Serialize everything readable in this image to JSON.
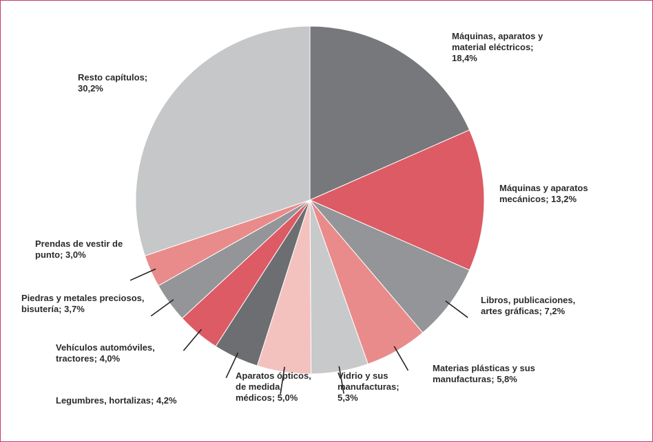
{
  "chart_data": {
    "type": "pie",
    "categories": [
      "Máquinas, aparatos y material eléctricos;",
      "Máquinas y aparatos mecánicos;",
      "Libros, publicaciones, artes gráficas;",
      "Materias plásticas y sus manufacturas;",
      "Vidrio y sus manufacturas;",
      "Aparatos ópticos, de medida, médicos;",
      "Legumbres, hortalizas;",
      "Vehículos automóviles, tractores;",
      "Piedras y metales preciosos, bisutería;",
      "Prendas de vestir de punto;",
      "Resto capítulos;"
    ],
    "values": [
      18.4,
      13.2,
      7.2,
      5.8,
      5.3,
      5.0,
      4.2,
      4.0,
      3.7,
      3.0,
      30.2
    ],
    "value_labels": [
      "18,4%",
      "13,2%",
      "7,2%",
      "5,8%",
      "5,3%",
      "5,0%",
      "4,2%",
      "4,0%",
      "3,7%",
      "3,0%",
      "30,2%"
    ],
    "colors": [
      "#77787b",
      "#dc5b65",
      "#939598",
      "#e98b8a",
      "#c8c9cb",
      "#f3c2bf",
      "#6d6e71",
      "#dc5b65",
      "#939598",
      "#e98b8a",
      "#c6c7c9"
    ]
  }
}
